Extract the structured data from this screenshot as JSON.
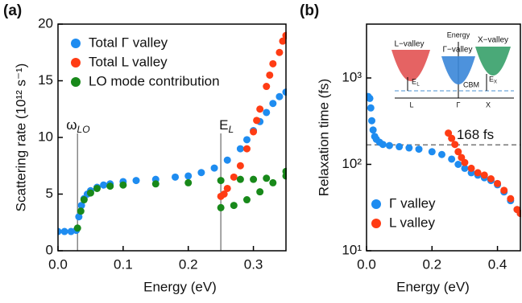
{
  "chart_data": [
    {
      "type": "scatter",
      "panel_label": "(a)",
      "xlabel": "Energy (eV)",
      "ylabel": "Scattering rate (10¹² s⁻¹)",
      "xlim": [
        0,
        0.35
      ],
      "xticks": [
        {
          "value": 0,
          "label": "0.0"
        },
        0.1,
        0.2,
        0.3
      ],
      "ylim": [
        0,
        20
      ],
      "yticks": [
        0,
        5,
        10,
        15,
        20
      ],
      "legend": "upper left",
      "annotations": [
        {
          "label": "ω",
          "subscript": "LO",
          "x": 0.03
        },
        {
          "label": "E",
          "subscript": "L",
          "x": 0.25
        }
      ],
      "series": [
        {
          "name": "Total Γ valley",
          "color": "#1e8cf0",
          "x": [
            0,
            0.01,
            0.02,
            0.028,
            0.032,
            0.036,
            0.04,
            0.045,
            0.05,
            0.06,
            0.07,
            0.08,
            0.1,
            0.12,
            0.15,
            0.18,
            0.2,
            0.22,
            0.24,
            0.26,
            0.28,
            0.29,
            0.3,
            0.31,
            0.32,
            0.33,
            0.34,
            0.35
          ],
          "values": [
            1.7,
            1.7,
            1.7,
            1.8,
            3,
            4,
            4.6,
            5,
            5.3,
            5.6,
            5.8,
            5.9,
            6.1,
            6.2,
            6.3,
            6.5,
            6.6,
            6.9,
            7.3,
            8,
            9,
            9.8,
            10.6,
            11.4,
            12.2,
            13,
            13.6,
            14
          ]
        },
        {
          "name": "Total L valley",
          "color": "#ff3c14",
          "x": [
            0.25,
            0.255,
            0.26,
            0.27,
            0.28,
            0.29,
            0.3,
            0.305,
            0.31,
            0.32,
            0.325,
            0.33,
            0.34,
            0.345,
            0.35
          ],
          "values": [
            4.8,
            5,
            5.5,
            6.5,
            7.5,
            9,
            10.5,
            11.5,
            12.5,
            14.5,
            15.5,
            16.5,
            17.5,
            18.5,
            19
          ]
        },
        {
          "name": "LO mode contribution",
          "color": "#18891a",
          "x": [
            0.03,
            0.035,
            0.04,
            0.05,
            0.06,
            0.08,
            0.1,
            0.15,
            0.2,
            0.25,
            0.28,
            0.3,
            0.32,
            0.35,
            0.25,
            0.27,
            0.29,
            0.31,
            0.33,
            0.35
          ],
          "values": [
            2,
            3.5,
            4.5,
            5.1,
            5.5,
            5.7,
            5.8,
            5.9,
            6,
            6.2,
            6.3,
            6.3,
            6.4,
            6.6,
            3.8,
            4,
            4.5,
            5.2,
            6,
            7
          ]
        }
      ]
    },
    {
      "type": "scatter",
      "panel_label": "(b)",
      "xlabel": "Energy (eV)",
      "ylabel": "Relaxation time (fs)",
      "xlim": [
        0,
        0.47
      ],
      "xticks": [
        {
          "value": 0,
          "label": "0.0"
        },
        0.2,
        0.4
      ],
      "ylim": [
        10,
        4200
      ],
      "log_y": true,
      "yticks": [
        {
          "value": 10,
          "label": "10¹"
        },
        {
          "value": 100,
          "label": "10²"
        },
        {
          "value": 1000,
          "label": "10³"
        }
      ],
      "legend": "lower left",
      "hline": {
        "value": 168,
        "label": "168 fs"
      },
      "inset": {
        "labels": [
          "L−valley",
          "Energy",
          "Γ−valley",
          "X−valley",
          "CBM",
          "E",
          "L",
          "E",
          "X",
          "L",
          "Γ",
          "X"
        ]
      },
      "series": [
        {
          "name": "Γ valley",
          "color": "#1e8cf0",
          "x": [
            0,
            0.005,
            0.01,
            0.013,
            0.016,
            0.02,
            0.025,
            0.03,
            0.04,
            0.05,
            0.07,
            0.1,
            0.13,
            0.16,
            0.2,
            0.23,
            0.26,
            0.28,
            0.3,
            0.32,
            0.34,
            0.36,
            0.38,
            0.4,
            0.42,
            0.44,
            0.46,
            0.47
          ],
          "values": [
            600,
            610,
            580,
            450,
            320,
            250,
            210,
            195,
            180,
            170,
            165,
            160,
            155,
            150,
            140,
            130,
            115,
            100,
            90,
            80,
            75,
            70,
            65,
            58,
            48,
            38,
            30,
            27
          ]
        },
        {
          "name": "L valley",
          "color": "#ff3c14",
          "x": [
            0.25,
            0.26,
            0.27,
            0.28,
            0.29,
            0.3,
            0.32,
            0.34,
            0.36,
            0.38,
            0.4,
            0.42,
            0.44,
            0.46,
            0.47
          ],
          "values": [
            230,
            200,
            170,
            140,
            120,
            105,
            90,
            80,
            75,
            68,
            60,
            50,
            40,
            30,
            27
          ]
        }
      ]
    }
  ]
}
